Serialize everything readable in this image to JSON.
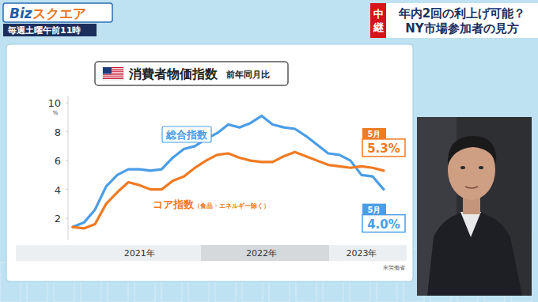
{
  "screen": {
    "logo": "Bizスクエア",
    "schedule": "毎週土曜午前11時",
    "live_tag": "中継",
    "headline": [
      "年内2回の利上げ可能？",
      "NY市場参加者の見方"
    ]
  },
  "chart_data": {
    "type": "line",
    "title": "消費者物価指数",
    "subtitle": "前年同月比",
    "source": "米労働省",
    "ylabel": "%",
    "categories": [
      null,
      null,
      null,
      null,
      null,
      null,
      "2021年",
      null,
      null,
      null,
      null,
      null,
      null,
      null,
      null,
      null,
      null,
      "2022年",
      null,
      null,
      null,
      null,
      null,
      null,
      null,
      null,
      "2023年",
      null,
      null
    ],
    "series": [
      {
        "name": "総合指数",
        "color": "#4a9de6",
        "values": [
          1.4,
          1.7,
          2.6,
          4.2,
          5.0,
          5.4,
          5.4,
          5.3,
          5.4,
          6.2,
          6.8,
          7.0,
          7.5,
          7.9,
          8.5,
          8.3,
          8.6,
          9.1,
          8.5,
          8.3,
          8.2,
          7.7,
          7.1,
          6.5,
          6.4,
          6.0,
          5.0,
          4.9,
          4.0
        ],
        "value_labels": [
          null,
          null,
          null,
          null,
          null,
          null,
          null,
          null,
          null,
          null,
          null,
          null,
          null,
          null,
          null,
          null,
          null,
          null,
          null,
          null,
          null,
          null,
          null,
          null,
          null,
          null,
          null,
          null,
          "4.0%"
        ],
        "annotation": "5月"
      },
      {
        "name": "コア指数（食品・エネルギー除く）",
        "color": "#f07a22",
        "values": [
          1.4,
          1.3,
          1.6,
          3.0,
          3.8,
          4.5,
          4.3,
          4.0,
          4.0,
          4.6,
          4.9,
          5.5,
          6.0,
          6.4,
          6.5,
          6.2,
          6.0,
          5.9,
          5.9,
          6.3,
          6.6,
          6.3,
          6.0,
          5.7,
          5.6,
          5.5,
          5.6,
          5.5,
          5.3
        ],
        "value_labels": [
          null,
          null,
          null,
          null,
          null,
          null,
          null,
          null,
          null,
          null,
          null,
          null,
          null,
          null,
          null,
          null,
          null,
          null,
          null,
          null,
          null,
          null,
          null,
          null,
          null,
          null,
          null,
          null,
          "5.3%"
        ],
        "annotation": "5月"
      }
    ],
    "ylim": [
      0.5,
      10.5
    ],
    "yticks": [
      2,
      4,
      6,
      8,
      10
    ],
    "grid": false
  }
}
